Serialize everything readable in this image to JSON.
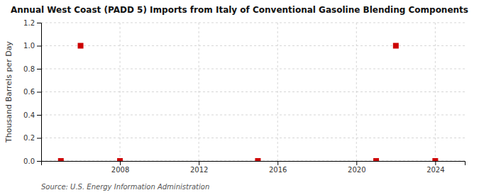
{
  "chart_data": {
    "type": "scatter",
    "title": "Annual West Coast (PADD 5) Imports from Italy of Conventional Gasoline Blending Components",
    "ylabel": "Thousand Barrels per Day",
    "source": "Source: U.S. Energy Information Administration",
    "x": [
      2005,
      2006,
      2008,
      2015,
      2021,
      2022,
      2024
    ],
    "values": [
      0.0,
      1.0,
      0.0,
      0.0,
      0.0,
      1.0,
      0.0
    ],
    "color": "#cc0000",
    "marker": "square",
    "xlim": [
      2004,
      2025.5
    ],
    "xticks": [
      2008,
      2012,
      2016,
      2020,
      2024
    ],
    "ylim": [
      0.0,
      1.2
    ],
    "yticks": [
      {
        "value": 0.0,
        "label": "0.0"
      },
      0.2,
      0.4,
      0.6,
      0.8,
      {
        "value": 1.0,
        "label": "1.0"
      },
      1.2
    ],
    "grid": true
  }
}
